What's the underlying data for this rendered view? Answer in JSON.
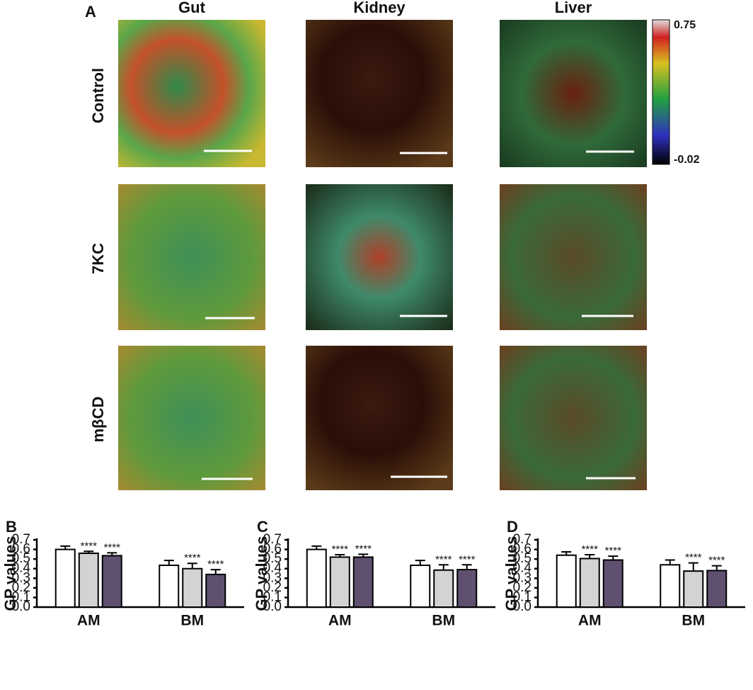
{
  "panel_a": {
    "label": "A",
    "columns": [
      "Gut",
      "Kidney",
      "Liver"
    ],
    "rows": [
      "Control",
      "7KC",
      "mβCD"
    ],
    "colorbar": {
      "max": "0.75",
      "min": "-0.02"
    }
  },
  "chart_data": [
    {
      "type": "bar",
      "panel": "B",
      "y_label": "GP values",
      "categories": [
        "AM",
        "BM"
      ],
      "ylim": [
        0,
        0.7
      ],
      "yticks": [
        {
          "value": 0,
          "label": "0.0"
        },
        0.1,
        0.2,
        0.3,
        0.4,
        0.5,
        0.6,
        0.7
      ],
      "series": [
        {
          "color": "#ffffff",
          "values": [
            0.6,
            0.435
          ],
          "errors": [
            0.035,
            0.05
          ]
        },
        {
          "color": "#d3d3d3",
          "values": [
            0.56,
            0.4
          ],
          "errors": [
            0.02,
            0.055
          ],
          "annotations": [
            "****",
            "****"
          ]
        },
        {
          "color": "#605070",
          "values": [
            0.535,
            0.34
          ],
          "errors": [
            0.03,
            0.05
          ],
          "annotations": [
            "****",
            "****"
          ]
        }
      ]
    },
    {
      "type": "bar",
      "panel": "C",
      "y_label": "GP values",
      "categories": [
        "AM",
        "BM"
      ],
      "ylim": [
        0,
        0.7
      ],
      "yticks": [
        {
          "value": 0,
          "label": "0.0"
        },
        0.1,
        0.2,
        0.3,
        0.4,
        0.5,
        0.6,
        0.7
      ],
      "series": [
        {
          "color": "#ffffff",
          "values": [
            0.6,
            0.435
          ],
          "errors": [
            0.035,
            0.05
          ]
        },
        {
          "color": "#d3d3d3",
          "values": [
            0.52,
            0.385
          ],
          "errors": [
            0.025,
            0.055
          ],
          "annotations": [
            "****",
            "****"
          ]
        },
        {
          "color": "#605070",
          "values": [
            0.52,
            0.39
          ],
          "errors": [
            0.03,
            0.05
          ],
          "annotations": [
            "****",
            "****"
          ]
        }
      ]
    },
    {
      "type": "bar",
      "panel": "D",
      "y_label": "GP values",
      "categories": [
        "AM",
        "BM"
      ],
      "ylim": [
        0,
        0.7
      ],
      "yticks": [
        {
          "value": 0,
          "label": "0.0"
        },
        0.1,
        0.2,
        0.3,
        0.4,
        0.5,
        0.6,
        0.7
      ],
      "series": [
        {
          "color": "#ffffff",
          "values": [
            0.54,
            0.44
          ],
          "errors": [
            0.035,
            0.05
          ]
        },
        {
          "color": "#d3d3d3",
          "values": [
            0.505,
            0.375
          ],
          "errors": [
            0.04,
            0.085
          ],
          "annotations": [
            "****",
            "****"
          ]
        },
        {
          "color": "#605070",
          "values": [
            0.49,
            0.38
          ],
          "errors": [
            0.04,
            0.05
          ],
          "annotations": [
            "****",
            "****"
          ]
        }
      ]
    }
  ]
}
